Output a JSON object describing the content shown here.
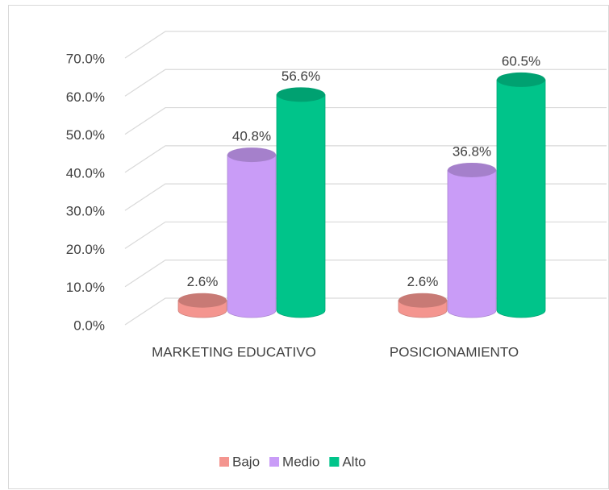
{
  "chart_data": {
    "type": "bar3d",
    "categories": [
      "MARKETING EDUCATIVO",
      "POSICIONAMIENTO"
    ],
    "series": [
      {
        "name": "Bajo",
        "color": "#f4958f",
        "values": [
          2.6,
          2.6
        ],
        "value_labels": [
          "2.6%",
          "2.6%"
        ]
      },
      {
        "name": "Medio",
        "color": "#c99cf7",
        "values": [
          40.8,
          36.8
        ],
        "value_labels": [
          "40.8%",
          "36.8%"
        ]
      },
      {
        "name": "Alto",
        "color": "#00c48a",
        "values": [
          56.6,
          60.5
        ],
        "value_labels": [
          "56.6%",
          "60.5%"
        ]
      }
    ],
    "ylim": [
      0,
      70
    ],
    "yticks": [
      {
        "value": 0,
        "label": "0.0%"
      },
      {
        "value": 10,
        "label": "10.0%"
      },
      {
        "value": 20,
        "label": "20.0%"
      },
      {
        "value": 30,
        "label": "30.0%"
      },
      {
        "value": 40,
        "label": "40.0%"
      },
      {
        "value": 50,
        "label": "50.0%"
      },
      {
        "value": 60,
        "label": "60.0%"
      },
      {
        "value": 70,
        "label": "70.0%"
      }
    ],
    "grid": true,
    "legend": "bottom"
  }
}
